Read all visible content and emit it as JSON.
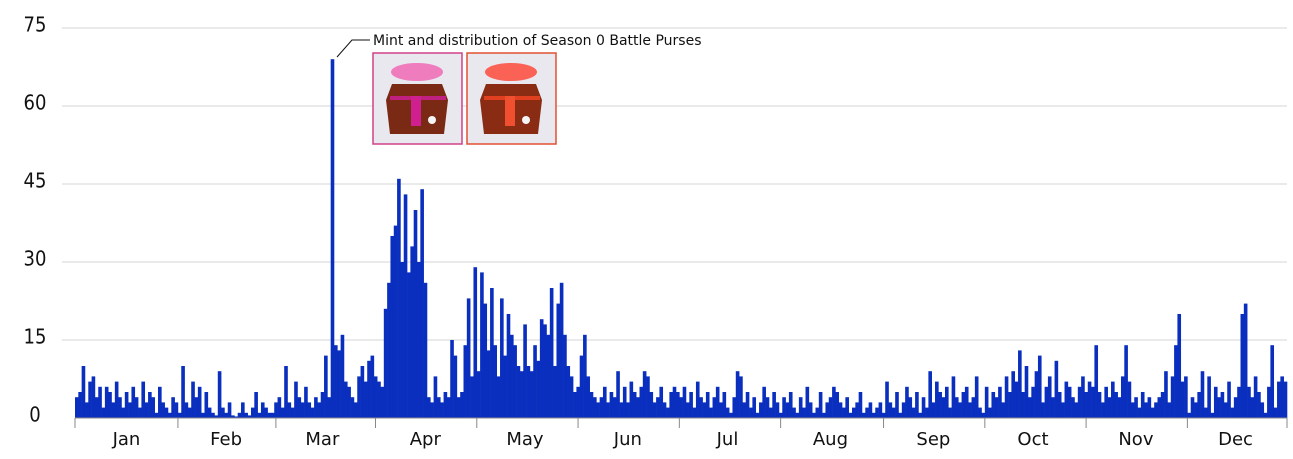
{
  "chart_data": {
    "type": "bar",
    "annotation": "Mint and distribution of Season 0 Battle Purses",
    "color": "#0a2fbf",
    "grid": true,
    "ylim": [
      0,
      75
    ],
    "yticks": [
      0,
      15,
      30,
      45,
      60,
      75
    ],
    "categories": [
      null,
      null,
      null,
      null,
      null,
      null,
      null,
      null,
      null,
      null,
      null,
      null,
      null,
      null,
      null,
      "Jan",
      null,
      null,
      null,
      null,
      null,
      null,
      null,
      null,
      null,
      null,
      null,
      null,
      null,
      null,
      null,
      null,
      null,
      null,
      null,
      null,
      null,
      null,
      null,
      null,
      null,
      null,
      null,
      null,
      null,
      "Feb",
      null,
      null,
      null,
      null,
      null,
      null,
      null,
      null,
      null,
      null,
      null,
      null,
      null,
      null,
      null,
      null,
      null,
      null,
      null,
      null,
      null,
      null,
      null,
      null,
      null,
      null,
      null,
      null,
      "Mar",
      null,
      null,
      null,
      null,
      null,
      null,
      null,
      null,
      null,
      null,
      null,
      null,
      null,
      null,
      null,
      null,
      null,
      null,
      null,
      null,
      null,
      null,
      null,
      null,
      null,
      null,
      null,
      null,
      null,
      null,
      "Apr",
      null,
      null,
      null,
      null,
      null,
      null,
      null,
      null,
      null,
      null,
      null,
      null,
      null,
      null,
      null,
      null,
      null,
      null,
      null,
      null,
      null,
      null,
      null,
      null,
      null,
      null,
      null,
      null,
      null,
      "May",
      null,
      null,
      null,
      null,
      null,
      null,
      null,
      null,
      null,
      null,
      null,
      null,
      null,
      null,
      null,
      null,
      null,
      null,
      null,
      null,
      null,
      null,
      null,
      null,
      null,
      null,
      null,
      null,
      null,
      null,
      "Jun",
      null,
      null,
      null,
      null,
      null,
      null,
      null,
      null,
      null,
      null,
      null,
      null,
      null,
      null,
      null,
      null,
      null,
      null,
      null,
      null,
      null,
      null,
      null,
      null,
      null,
      null,
      null,
      null,
      null,
      "Jul",
      null,
      null,
      null,
      null,
      null,
      null,
      null,
      null,
      null,
      null,
      null,
      null,
      null,
      null,
      null,
      null,
      null,
      null,
      null,
      null,
      null,
      null,
      null,
      null,
      null,
      null,
      null,
      null,
      null,
      null,
      "Aug",
      null,
      null,
      null,
      null,
      null,
      null,
      null,
      null,
      null,
      null,
      null,
      null,
      null,
      null,
      null,
      null,
      null,
      null,
      null,
      null,
      null,
      null,
      null,
      null,
      null,
      null,
      null,
      null,
      null,
      null,
      "Sep",
      null,
      null,
      null,
      null,
      null,
      null,
      null,
      null,
      null,
      null,
      null,
      null,
      null,
      null,
      null,
      null,
      null,
      null,
      null,
      null,
      null,
      null,
      null,
      null,
      null,
      null,
      null,
      null,
      null,
      "Oct",
      null,
      null,
      null,
      null,
      null,
      null,
      null,
      null,
      null,
      null,
      null,
      null,
      null,
      null,
      null,
      null,
      null,
      null,
      null,
      null,
      null,
      null,
      null,
      null,
      null,
      null,
      null,
      null,
      null,
      null,
      "Nov",
      null,
      null,
      null,
      null,
      null,
      null,
      null,
      null,
      null,
      null,
      null,
      null,
      null,
      null,
      null,
      null,
      null,
      null,
      null,
      null,
      null,
      null,
      null,
      null,
      null,
      null,
      null,
      null,
      null,
      "Dec",
      null,
      null,
      null,
      null,
      null,
      null,
      null,
      null,
      null,
      null,
      null,
      null,
      null,
      null,
      null
    ],
    "values": [
      4,
      5,
      10,
      3,
      7,
      8,
      4,
      6,
      2,
      6,
      5,
      3,
      7,
      4,
      2,
      5,
      3,
      6,
      4,
      2,
      7,
      3,
      5,
      4,
      1,
      6,
      3,
      2,
      1,
      4,
      3,
      1,
      10,
      3,
      2,
      7,
      4,
      6,
      1,
      5,
      2,
      1,
      0.5,
      9,
      2,
      1,
      3,
      0.5,
      0.3,
      1,
      3,
      1,
      0.5,
      2,
      5,
      1,
      3,
      2,
      1,
      1,
      3,
      4,
      2,
      10,
      3,
      2,
      7,
      4,
      3,
      6,
      3,
      2,
      4,
      3,
      5,
      12,
      4,
      69,
      14,
      13,
      16,
      7,
      6,
      4,
      3,
      8,
      10,
      7,
      11,
      12,
      8,
      7,
      6,
      21,
      26,
      35,
      37,
      46,
      30,
      43,
      28,
      33,
      40,
      30,
      44,
      26,
      4,
      3,
      8,
      4,
      3,
      5,
      4,
      15,
      12,
      4,
      5,
      14,
      23,
      8,
      29,
      9,
      28,
      22,
      13,
      25,
      14,
      8,
      23,
      12,
      20,
      16,
      14,
      10,
      9,
      18,
      10,
      9,
      14,
      11,
      19,
      18,
      16,
      25,
      10,
      22,
      26,
      16,
      10,
      8,
      5,
      6,
      12,
      16,
      8,
      5,
      4,
      3,
      4,
      6,
      3,
      5,
      4,
      9,
      3,
      6,
      3,
      7,
      5,
      4,
      6,
      9,
      8,
      5,
      3,
      4,
      6,
      3,
      2,
      5,
      6,
      5,
      4,
      6,
      3,
      5,
      2,
      7,
      4,
      3,
      5,
      2,
      4,
      6,
      3,
      5,
      2,
      1,
      4,
      9,
      8,
      3,
      5,
      2,
      4,
      1,
      3,
      6,
      4,
      2,
      5,
      3,
      1,
      4,
      3,
      5,
      2,
      1,
      4,
      2,
      6,
      3,
      1,
      2,
      5,
      1,
      3,
      4,
      6,
      5,
      3,
      2,
      4,
      1,
      2,
      3,
      5,
      1,
      2,
      3,
      1,
      2,
      3,
      1,
      7,
      3,
      2,
      5,
      1,
      3,
      6,
      4,
      2,
      5,
      1,
      4,
      2,
      9,
      3,
      7,
      5,
      4,
      6,
      2,
      8,
      4,
      3,
      5,
      6,
      3,
      4,
      8,
      2,
      1,
      6,
      2,
      5,
      4,
      6,
      3,
      8,
      5,
      9,
      7,
      13,
      5,
      10,
      4,
      6,
      9,
      12,
      3,
      6,
      8,
      4,
      11,
      5,
      3,
      7,
      6,
      4,
      3,
      6,
      8,
      5,
      7,
      6,
      14,
      5,
      3,
      6,
      4,
      7,
      5,
      4,
      8,
      14,
      7,
      3,
      4,
      2,
      5,
      3,
      4,
      2,
      3,
      4,
      5,
      9,
      3,
      8,
      14,
      20,
      7,
      8,
      1,
      4,
      3,
      5,
      9,
      2,
      8,
      1,
      6,
      4,
      5,
      3,
      7,
      2,
      4,
      6,
      20,
      22,
      6,
      4,
      8,
      5,
      3,
      1,
      6,
      14,
      2,
      7,
      8,
      7
    ]
  }
}
